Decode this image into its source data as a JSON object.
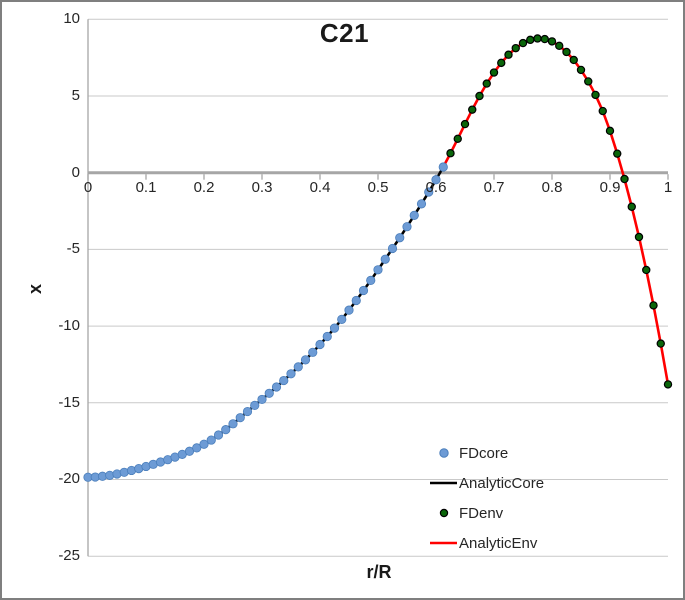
{
  "title": "C21",
  "axes": {
    "x_title": "r/R",
    "y_title": "x",
    "x_ticks": [
      "0",
      "0.1",
      "0.2",
      "0.3",
      "0.4",
      "0.5",
      "0.6",
      "0.7",
      "0.8",
      "0.9",
      "1"
    ],
    "y_ticks": [
      "10",
      "5",
      "0",
      "-5",
      "-10",
      "-15",
      "-20",
      "-25"
    ]
  },
  "legend": {
    "items": [
      {
        "label": "FDcore",
        "swatch": "marker",
        "color": "#6D9BD5",
        "edge": "#4A7EBB"
      },
      {
        "label": "AnalyticCore",
        "swatch": "line",
        "color": "#000000"
      },
      {
        "label": "FDenv",
        "swatch": "marker",
        "color": "#0A650A",
        "edge": "#000000"
      },
      {
        "label": "AnalyticEnv",
        "swatch": "line",
        "color": "#FF0000"
      }
    ]
  },
  "chart_data": {
    "type": "line+scatter",
    "title": "C21",
    "xlabel": "r/R",
    "ylabel": "x",
    "xlim": [
      0,
      1
    ],
    "ylim": [
      -25,
      10
    ],
    "grid": "horizontal gridlines at every 5 units, zero line drawn as thick gray axis",
    "grid_color": "#C9C9C9",
    "axis_color": "#A6A6A6",
    "legend_position": "inside bottom-right",
    "series": [
      {
        "name": "AnalyticCore",
        "plot": "line",
        "color": "#000000",
        "width": 2.6,
        "x": [
          0,
          0.0125,
          0.025,
          0.0375,
          0.05,
          0.0625,
          0.075,
          0.0875,
          0.1,
          0.1125,
          0.125,
          0.1375,
          0.15,
          0.1625,
          0.175,
          0.1875,
          0.2,
          0.2125,
          0.225,
          0.2375,
          0.25,
          0.2625,
          0.275,
          0.2875,
          0.3,
          0.3125,
          0.325,
          0.3375,
          0.35,
          0.3625,
          0.375,
          0.3875,
          0.4,
          0.4125,
          0.425,
          0.4375,
          0.45,
          0.4625,
          0.475,
          0.4875,
          0.5,
          0.5125,
          0.525,
          0.5375,
          0.55,
          0.5625,
          0.575,
          0.5875,
          0.6,
          0.6125
        ],
        "y": [
          -19.85,
          -19.84,
          -19.79,
          -19.73,
          -19.64,
          -19.53,
          -19.41,
          -19.29,
          -19.15,
          -19.01,
          -18.86,
          -18.71,
          -18.54,
          -18.36,
          -18.16,
          -17.94,
          -17.7,
          -17.43,
          -17.1,
          -16.75,
          -16.37,
          -15.97,
          -15.57,
          -15.17,
          -14.78,
          -14.38,
          -13.97,
          -13.55,
          -13.11,
          -12.66,
          -12.2,
          -11.71,
          -11.2,
          -10.68,
          -10.13,
          -9.56,
          -8.96,
          -8.33,
          -7.68,
          -7.02,
          -6.33,
          -5.64,
          -4.94,
          -4.24,
          -3.52,
          -2.78,
          -2.03,
          -1.26,
          -0.46,
          0.37
        ]
      },
      {
        "name": "AnalyticEnv",
        "plot": "line",
        "color": "#FF0000",
        "width": 2.6,
        "x": [
          0.6125,
          0.625,
          0.6375,
          0.65,
          0.6625,
          0.675,
          0.6875,
          0.7,
          0.7125,
          0.725,
          0.7375,
          0.75,
          0.7625,
          0.775,
          0.7875,
          0.8,
          0.8125,
          0.825,
          0.8375,
          0.85,
          0.8625,
          0.875,
          0.8875,
          0.9,
          0.9125,
          0.925,
          0.9375,
          0.95,
          0.9625,
          0.975,
          0.9875,
          1.0
        ],
        "y": [
          0.37,
          1.27,
          2.21,
          3.17,
          4.11,
          5.0,
          5.81,
          6.53,
          7.16,
          7.69,
          8.12,
          8.45,
          8.66,
          8.75,
          8.71,
          8.56,
          8.27,
          7.87,
          7.35,
          6.7,
          5.95,
          5.07,
          4.02,
          2.73,
          1.24,
          -0.41,
          -2.22,
          -4.19,
          -6.34,
          -8.65,
          -11.14,
          -13.8
        ]
      },
      {
        "name": "FDcore",
        "plot": "scatter",
        "color": "#6D9BD5",
        "edge_color": "#4A7EBB",
        "edge_width": 0.8,
        "marker_size": 4.2,
        "x": [
          0,
          0.0125,
          0.025,
          0.0375,
          0.05,
          0.0625,
          0.075,
          0.0875,
          0.1,
          0.1125,
          0.125,
          0.1375,
          0.15,
          0.1625,
          0.175,
          0.1875,
          0.2,
          0.2125,
          0.225,
          0.2375,
          0.25,
          0.2625,
          0.275,
          0.2875,
          0.3,
          0.3125,
          0.325,
          0.3375,
          0.35,
          0.3625,
          0.375,
          0.3875,
          0.4,
          0.4125,
          0.425,
          0.4375,
          0.45,
          0.4625,
          0.475,
          0.4875,
          0.5,
          0.5125,
          0.525,
          0.5375,
          0.55,
          0.5625,
          0.575,
          0.5875,
          0.6,
          0.6125
        ],
        "y": [
          -19.85,
          -19.84,
          -19.79,
          -19.73,
          -19.64,
          -19.53,
          -19.41,
          -19.29,
          -19.15,
          -19.01,
          -18.86,
          -18.71,
          -18.54,
          -18.36,
          -18.16,
          -17.94,
          -17.7,
          -17.43,
          -17.1,
          -16.75,
          -16.37,
          -15.97,
          -15.57,
          -15.17,
          -14.78,
          -14.38,
          -13.97,
          -13.55,
          -13.11,
          -12.66,
          -12.2,
          -11.71,
          -11.2,
          -10.68,
          -10.13,
          -9.56,
          -8.96,
          -8.33,
          -7.68,
          -7.02,
          -6.33,
          -5.64,
          -4.94,
          -4.24,
          -3.52,
          -2.78,
          -2.03,
          -1.26,
          -0.46,
          0.37
        ]
      },
      {
        "name": "FDenv",
        "plot": "scatter",
        "color": "#0A650A",
        "edge_color": "#000000",
        "edge_width": 1.2,
        "marker_size": 3.6,
        "x": [
          0.625,
          0.6375,
          0.65,
          0.6625,
          0.675,
          0.6875,
          0.7,
          0.7125,
          0.725,
          0.7375,
          0.75,
          0.7625,
          0.775,
          0.7875,
          0.8,
          0.8125,
          0.825,
          0.8375,
          0.85,
          0.8625,
          0.875,
          0.8875,
          0.9,
          0.9125,
          0.925,
          0.9375,
          0.95,
          0.9625,
          0.975,
          0.9875,
          1.0
        ],
        "y": [
          1.27,
          2.21,
          3.17,
          4.11,
          5.0,
          5.81,
          6.53,
          7.16,
          7.69,
          8.12,
          8.45,
          8.66,
          8.75,
          8.71,
          8.56,
          8.27,
          7.87,
          7.35,
          6.7,
          5.95,
          5.07,
          4.02,
          2.73,
          1.24,
          -0.41,
          -2.22,
          -4.19,
          -6.34,
          -8.65,
          -11.14,
          -13.8
        ]
      }
    ]
  }
}
